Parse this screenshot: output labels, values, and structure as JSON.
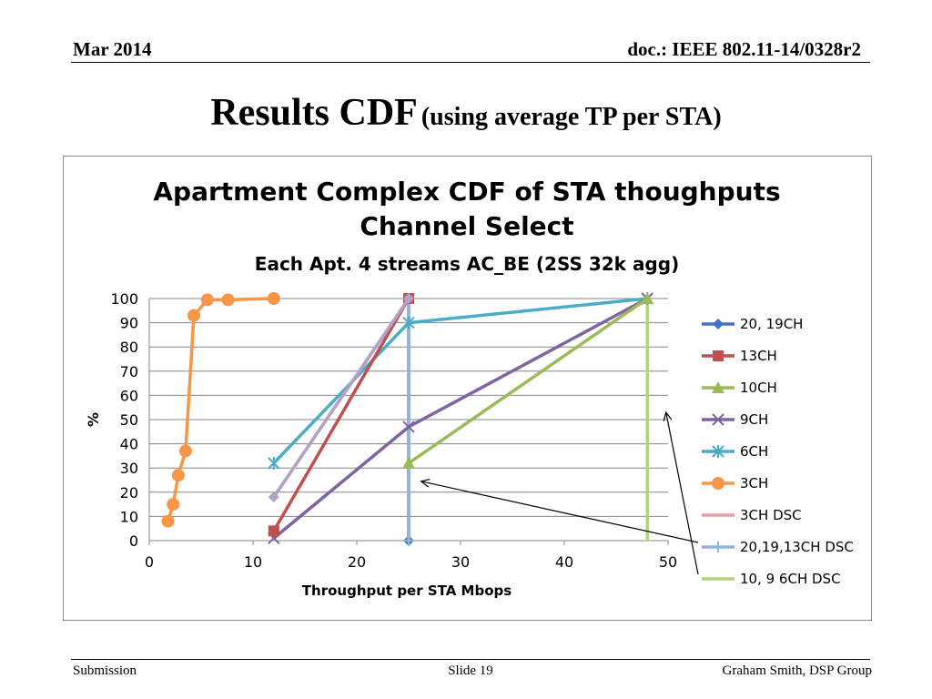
{
  "header": {
    "date": "Mar 2014",
    "doc_id": "doc.: IEEE 802.11-14/0328r2"
  },
  "slide_title": {
    "main": "Results CDF",
    "sub": "(using average TP per STA)"
  },
  "footer": {
    "left": "Submission",
    "center": "Slide 19",
    "right": "Graham Smith, DSP Group"
  },
  "chart_data": {
    "type": "line",
    "title": "Apartment Complex CDF of STA thoughputs",
    "title_line2": "Channel Select",
    "subtitle": "Each Apt. 4 streams AC_BE (2SS 32k agg)",
    "xlabel": "Throughput  per STA Mbops",
    "ylabel": "%",
    "xlim": [
      0,
      50
    ],
    "ylim": [
      0,
      100
    ],
    "x_ticks": [
      0,
      10,
      20,
      30,
      40,
      50
    ],
    "y_ticks": [
      0,
      10,
      20,
      30,
      40,
      50,
      60,
      70,
      80,
      90,
      100
    ],
    "grid": "horizontal",
    "legend_position": "right",
    "series": [
      {
        "name": "20, 19CH",
        "color": "#4472c4",
        "marker": "diamond",
        "points": [
          [
            25,
            0
          ],
          [
            25,
            100
          ]
        ]
      },
      {
        "name": "13CH",
        "color": "#c0504d",
        "marker": "square",
        "points": [
          [
            12,
            4
          ],
          [
            25,
            100
          ]
        ]
      },
      {
        "name": "10CH",
        "color": "#9bbb59",
        "marker": "triangle",
        "points": [
          [
            25,
            32
          ],
          [
            48,
            100
          ]
        ]
      },
      {
        "name": "9CH",
        "color": "#8064a2",
        "marker": "x",
        "points": [
          [
            12,
            1
          ],
          [
            25,
            47
          ],
          [
            48,
            100
          ]
        ]
      },
      {
        "name": "6CH",
        "color": "#4bacc6",
        "marker": "star",
        "points": [
          [
            12,
            32
          ],
          [
            25,
            90
          ],
          [
            48,
            100
          ]
        ]
      },
      {
        "name": "3CH",
        "color": "#f79646",
        "marker": "circle",
        "points": [
          [
            1.8,
            8
          ],
          [
            2.3,
            15
          ],
          [
            2.8,
            27
          ],
          [
            3.5,
            37
          ],
          [
            4.3,
            93
          ],
          [
            5.6,
            99.5
          ],
          [
            7.6,
            99.5
          ],
          [
            12,
            100
          ]
        ]
      },
      {
        "name": "3CH DSC",
        "color": "#e6a0a0",
        "marker": "none",
        "points": [
          [
            12,
            18
          ],
          [
            25,
            100
          ]
        ]
      },
      {
        "name": "20,19,13CH DSC",
        "color": "#95b3d7",
        "marker": "plus",
        "points": [
          [
            25,
            0
          ],
          [
            25,
            100
          ]
        ]
      },
      {
        "name": "10, 9 6CH DSC",
        "color": "#b4d47c",
        "marker": "none",
        "points": [
          [
            48,
            0
          ],
          [
            48,
            100
          ]
        ]
      },
      {
        "name": "",
        "color": "#b3a2c7",
        "marker": "diamond",
        "legend": false,
        "points": [
          [
            12,
            18
          ],
          [
            25,
            100
          ]
        ]
      }
    ],
    "annotations": [
      {
        "type": "arrow",
        "from_legend": "20,19,13CH DSC",
        "to": [
          26.2,
          24.5
        ]
      },
      {
        "type": "arrow",
        "from_legend": "10, 9 6CH DSC",
        "to": [
          49.8,
          53
        ]
      }
    ]
  }
}
